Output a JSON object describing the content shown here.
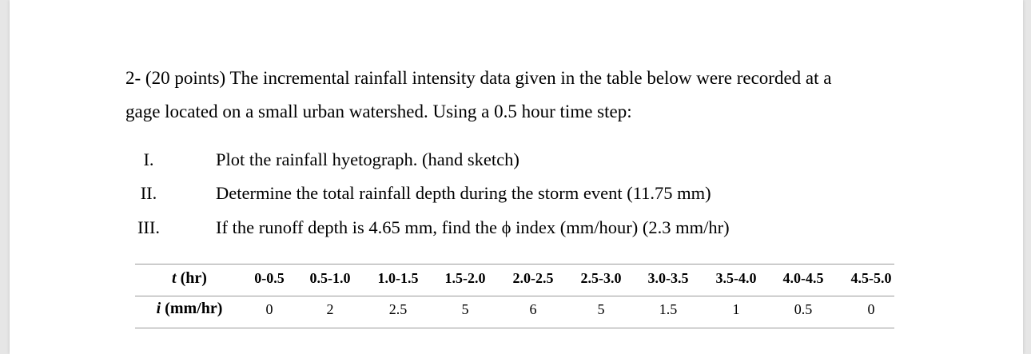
{
  "question": {
    "line1": "2- (20 points) The incremental rainfall intensity data given in the table below were recorded at a",
    "line2": "gage located on a small urban watershed. Using a 0.5 hour time step:"
  },
  "items": [
    {
      "num": "I.",
      "text": "Plot the rainfall hyetograph. (hand sketch)"
    },
    {
      "num": "II.",
      "text": "Determine the total rainfall depth during the storm event (11.75 mm)"
    },
    {
      "num": "III.",
      "text": "If the runoff depth is 4.65 mm, find the ϕ index (mm/hour) (2.3 mm/hr)"
    }
  ],
  "table": {
    "t_label_var": "t",
    "t_label_unit": " (hr)",
    "i_label_var": "i",
    "i_label_unit": " (mm/hr)",
    "intervals": [
      "0-0.5",
      "0.5-1.0",
      "1.0-1.5",
      "1.5-2.0",
      "2.0-2.5",
      "2.5-3.0",
      "3.0-3.5",
      "3.5-4.0",
      "4.0-4.5",
      "4.5-5.0"
    ],
    "intensities": [
      "0",
      "2",
      "2.5",
      "5",
      "6",
      "5",
      "1.5",
      "1",
      "0.5",
      "0"
    ]
  }
}
